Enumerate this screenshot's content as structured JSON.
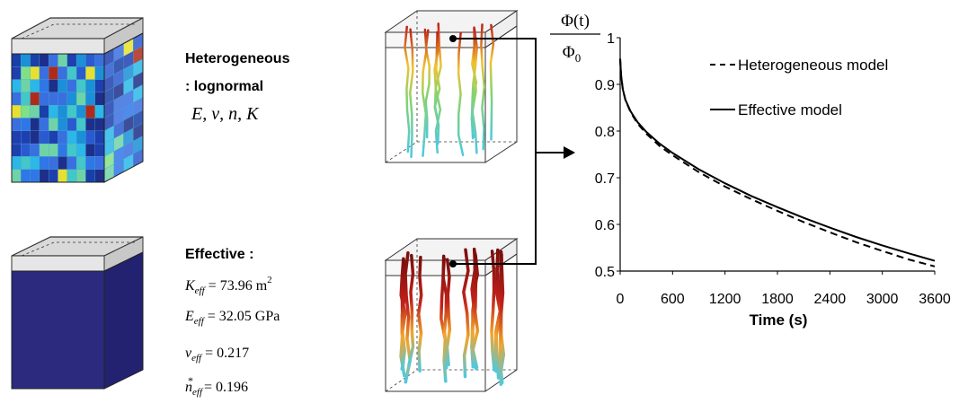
{
  "left_panel": {
    "heterogeneous": {
      "title": "Heterogeneous",
      "subtitle": ": lognormal",
      "params": "E, ν, n, K"
    },
    "effective": {
      "title": "Effective :",
      "K_lhs": "K",
      "K_sub": "eff",
      "K_rhs": " = 73.96 m",
      "K_sup": "2",
      "E_lhs": "E",
      "E_sub": "eff",
      "E_rhs": " = 32.05 GPa",
      "nu_lhs": "ν",
      "nu_sub": "eff",
      "nu_rhs": " = 0.217",
      "n_lhs": "n",
      "n_sub": "eff",
      "n_sup": "*",
      "n_rhs": " = 0.196"
    }
  },
  "colors": {
    "effective_cube": "#2b2a7f",
    "cube_top": "#d8d8d8",
    "line": "#000000"
  },
  "chart_data": {
    "type": "line",
    "ylabel_num": "Φ(t)",
    "ylabel_den": "Φ",
    "ylabel_den_sub": "0",
    "xlabel": "Time (s)",
    "xlim": [
      0,
      3600
    ],
    "ylim": [
      0.5,
      1.0
    ],
    "xticks": [
      "0",
      "600",
      "1200",
      "1800",
      "2400",
      "3000",
      "3600"
    ],
    "yticks": [
      "0.5",
      "0.6",
      "0.7",
      "0.8",
      "0.9",
      "1"
    ],
    "legend_position": "top-right",
    "series": [
      {
        "name": "Heterogeneous model",
        "style": "dashed",
        "x": [
          0,
          10,
          30,
          60,
          120,
          200,
          300,
          450,
          600,
          900,
          1200,
          1500,
          1800,
          2100,
          2400,
          2700,
          3000,
          3300,
          3600
        ],
        "y": [
          0.955,
          0.92,
          0.89,
          0.867,
          0.84,
          0.816,
          0.794,
          0.768,
          0.748,
          0.712,
          0.681,
          0.654,
          0.629,
          0.605,
          0.583,
          0.562,
          0.543,
          0.525,
          0.51
        ]
      },
      {
        "name": "Effective model",
        "style": "solid",
        "x": [
          0,
          10,
          30,
          60,
          120,
          200,
          300,
          450,
          600,
          900,
          1200,
          1500,
          1800,
          2100,
          2400,
          2700,
          3000,
          3300,
          3600
        ],
        "y": [
          0.955,
          0.92,
          0.89,
          0.867,
          0.842,
          0.819,
          0.798,
          0.773,
          0.753,
          0.718,
          0.688,
          0.661,
          0.637,
          0.614,
          0.593,
          0.573,
          0.555,
          0.538,
          0.522
        ]
      }
    ]
  }
}
